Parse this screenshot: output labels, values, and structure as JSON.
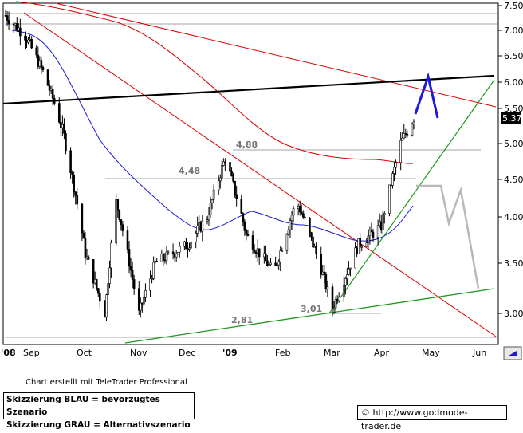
{
  "chart_data": {
    "type": "candlestick",
    "y_axis": {
      "ticks": [
        "7.50",
        "7.00",
        "6.50",
        "6.00",
        "5.50",
        "5.00",
        "4.50",
        "4.00",
        "3.50",
        "3.00"
      ],
      "range": [
        2.75,
        7.55
      ]
    },
    "x_axis": {
      "ticks": [
        "'08",
        "Sep",
        "Oct",
        "Nov",
        "Dec",
        "'09",
        "Feb",
        "Mar",
        "Apr",
        "May",
        "Jun"
      ]
    },
    "last_price_label": "5.37",
    "annotations": [
      {
        "text": "4,88",
        "value": 4.88
      },
      {
        "text": "4,48",
        "value": 4.48
      },
      {
        "text": "3,01",
        "value": 3.01
      },
      {
        "text": "2,81",
        "value": 2.81
      }
    ],
    "horizontal_levels": [
      7.35,
      7.12,
      4.88,
      4.48,
      3.01,
      2.77
    ],
    "series_approx": [
      {
        "date": "2008-08-20",
        "close": 7.3
      },
      {
        "date": "2008-09-01",
        "close": 6.9
      },
      {
        "date": "2008-09-12",
        "close": 6.2
      },
      {
        "date": "2008-09-25",
        "close": 5.1
      },
      {
        "date": "2008-10-08",
        "close": 3.6
      },
      {
        "date": "2008-10-20",
        "close": 3.0
      },
      {
        "date": "2008-10-27",
        "close": 4.2
      },
      {
        "date": "2008-11-10",
        "close": 3.0
      },
      {
        "date": "2008-11-20",
        "close": 3.5
      },
      {
        "date": "2008-12-10",
        "close": 3.7
      },
      {
        "date": "2008-12-22",
        "close": 4.0
      },
      {
        "date": "2009-01-02",
        "close": 4.8
      },
      {
        "date": "2009-01-15",
        "close": 3.8
      },
      {
        "date": "2009-02-01",
        "close": 3.4
      },
      {
        "date": "2009-02-15",
        "close": 4.2
      },
      {
        "date": "2009-03-01",
        "close": 3.5
      },
      {
        "date": "2009-03-09",
        "close": 3.05
      },
      {
        "date": "2009-03-25",
        "close": 3.7
      },
      {
        "date": "2009-04-08",
        "close": 3.9
      },
      {
        "date": "2009-04-20",
        "close": 5.0
      },
      {
        "date": "2009-04-28",
        "close": 5.37
      }
    ]
  },
  "texts": {
    "credit": "Chart erstellt mit TeleTrader Professional",
    "legend_line1": "Skizzierung BLAU = bevorzugtes Szenario",
    "legend_line2": "Skizzierung GRAU = Alternativszenario",
    "url": "© http://www.godmode-trader.de"
  },
  "colors": {
    "candles": "#000000",
    "ma_red": "#dd0000",
    "ma_blue": "#1a1ad8",
    "trend_green": "#1a9a1a",
    "scenario_blue": "#1a1ad8",
    "scenario_gray": "#b8b8b8",
    "level_line": "#888888",
    "annotation_text": "#777777"
  }
}
